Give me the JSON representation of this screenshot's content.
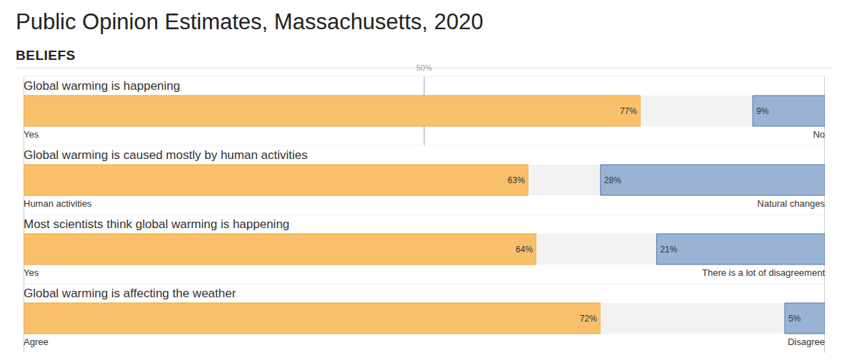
{
  "header": {
    "title": "Public Opinion Estimates, Massachusetts, 2020",
    "section": "BELIEFS"
  },
  "chart_data": [
    {
      "type": "bar",
      "title": "Global warming is happening",
      "orientation": "horizontal",
      "stacked": true,
      "data_labels": true,
      "grid": true,
      "tick_labels": "x",
      "xlim": [
        0,
        100
      ],
      "xticks": [
        {
          "value": 50,
          "label": "50%"
        }
      ],
      "series": [
        {
          "name": "Yes",
          "color": "#f9c06b",
          "values": [
            77
          ],
          "value_labels": [
            "77%"
          ]
        },
        {
          "color": "#f2f2f2",
          "values": [
            14
          ]
        },
        {
          "name": "No",
          "color": "#9ab3d5",
          "values": [
            9
          ],
          "value_labels": [
            "9%"
          ]
        }
      ]
    },
    {
      "type": "bar",
      "title": "Global warming is caused mostly by human activities",
      "orientation": "horizontal",
      "stacked": true,
      "data_labels": true,
      "grid": true,
      "tick_labels": false,
      "xlim": [
        0,
        100
      ],
      "xticks": [
        50
      ],
      "series": [
        {
          "name": "Human activities",
          "color": "#f9c06b",
          "values": [
            63
          ],
          "value_labels": [
            "63%"
          ]
        },
        {
          "color": "#f2f2f2",
          "values": [
            9
          ]
        },
        {
          "name": "Natural changes",
          "color": "#9ab3d5",
          "values": [
            28
          ],
          "value_labels": [
            "28%"
          ]
        }
      ]
    },
    {
      "type": "bar",
      "title": "Most scientists think global warming is happening",
      "orientation": "horizontal",
      "stacked": true,
      "data_labels": true,
      "grid": true,
      "tick_labels": false,
      "xlim": [
        0,
        100
      ],
      "xticks": [
        50
      ],
      "series": [
        {
          "name": "Yes",
          "color": "#f9c06b",
          "values": [
            64
          ],
          "value_labels": [
            "64%"
          ]
        },
        {
          "color": "#f2f2f2",
          "values": [
            15
          ]
        },
        {
          "name": "There is a lot of disagreement",
          "color": "#9ab3d5",
          "values": [
            21
          ],
          "value_labels": [
            "21%"
          ]
        }
      ]
    },
    {
      "type": "bar",
      "title": "Global warming is affecting the weather",
      "orientation": "horizontal",
      "stacked": true,
      "data_labels": true,
      "grid": true,
      "tick_labels": false,
      "xlim": [
        0,
        100
      ],
      "xticks": [
        50
      ],
      "series": [
        {
          "name": "Agree",
          "color": "#f9c06b",
          "values": [
            72
          ],
          "value_labels": [
            "72%"
          ]
        },
        {
          "color": "#f2f2f2",
          "values": [
            23
          ]
        },
        {
          "name": "Disagree",
          "color": "#9ab3d5",
          "values": [
            5
          ],
          "value_labels": [
            "5%"
          ]
        }
      ]
    }
  ]
}
